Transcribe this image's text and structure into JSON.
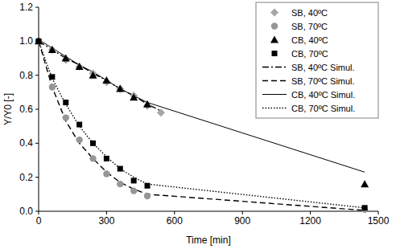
{
  "chart_data": {
    "type": "scatter",
    "x_label": "Time [min]",
    "y_label": "Y/Y0 [-]",
    "xlim": [
      0,
      1500
    ],
    "xticks": [
      0,
      300,
      600,
      900,
      1200,
      1500
    ],
    "ylim": [
      0,
      1.2
    ],
    "yticks": [
      {
        "value": 0,
        "label": "0.0"
      },
      0.2,
      0.4,
      0.6,
      0.8,
      {
        "value": 1,
        "label": "1.0"
      },
      1.2
    ],
    "grid": false,
    "legend": "upper right",
    "series": [
      {
        "name": "SB, 40ºC",
        "type": "scatter",
        "marker": "diamond",
        "color": "#a6a6a6",
        "x": [
          0,
          60,
          120,
          180,
          240,
          300,
          360,
          420,
          480,
          540
        ],
        "values": [
          1.0,
          0.95,
          0.89,
          0.85,
          0.81,
          0.76,
          0.72,
          0.68,
          0.62,
          0.58
        ]
      },
      {
        "name": "SB, 70ºC",
        "type": "scatter",
        "marker": "circle",
        "color": "#969696",
        "x": [
          0,
          60,
          120,
          180,
          240,
          300,
          360,
          420,
          480,
          1440
        ],
        "values": [
          1.0,
          0.73,
          0.55,
          0.42,
          0.31,
          0.22,
          0.16,
          0.12,
          0.09,
          0.01
        ]
      },
      {
        "name": "CB, 40ºC",
        "type": "scatter",
        "marker": "triangle",
        "color": "#000000",
        "x": [
          0,
          60,
          120,
          180,
          240,
          300,
          360,
          420,
          480,
          1440
        ],
        "values": [
          1.0,
          0.95,
          0.9,
          0.85,
          0.8,
          0.77,
          0.72,
          0.67,
          0.63,
          0.16
        ]
      },
      {
        "name": "CB, 70ºC",
        "type": "scatter",
        "marker": "square",
        "color": "#000000",
        "x": [
          0,
          60,
          120,
          180,
          240,
          300,
          360,
          420,
          480,
          1440
        ],
        "values": [
          1.0,
          0.79,
          0.64,
          0.51,
          0.4,
          0.31,
          0.25,
          0.18,
          0.15,
          0.02
        ]
      },
      {
        "name": "SB, 40ºC Simul.",
        "type": "line",
        "line_style": "dashdot",
        "color": "#000000",
        "x": [
          0,
          60,
          120,
          180,
          240,
          300,
          360,
          420,
          480,
          540
        ],
        "values": [
          1.0,
          0.95,
          0.9,
          0.86,
          0.81,
          0.77,
          0.72,
          0.68,
          0.63,
          0.59
        ]
      },
      {
        "name": "SB, 70ºC Simul.",
        "type": "line",
        "line_style": "dashed",
        "color": "#000000",
        "x": [
          0,
          60,
          120,
          180,
          240,
          300,
          360,
          420,
          480,
          1440
        ],
        "values": [
          1.0,
          0.73,
          0.53,
          0.4,
          0.31,
          0.23,
          0.17,
          0.13,
          0.1,
          0.005
        ]
      },
      {
        "name": "CB, 40ºC Simul.",
        "type": "line",
        "line_style": "solid",
        "color": "#000000",
        "x": [
          0,
          60,
          120,
          180,
          240,
          300,
          360,
          420,
          480,
          1440
        ],
        "values": [
          1.01,
          0.96,
          0.91,
          0.86,
          0.82,
          0.77,
          0.72,
          0.68,
          0.64,
          0.23
        ]
      },
      {
        "name": "CB, 70ºC Simul.",
        "type": "line",
        "line_style": "dotted",
        "color": "#000000",
        "x": [
          0,
          60,
          120,
          180,
          240,
          300,
          360,
          420,
          480,
          1440
        ],
        "values": [
          1.0,
          0.78,
          0.63,
          0.5,
          0.4,
          0.32,
          0.25,
          0.2,
          0.16,
          0.02
        ]
      }
    ]
  }
}
